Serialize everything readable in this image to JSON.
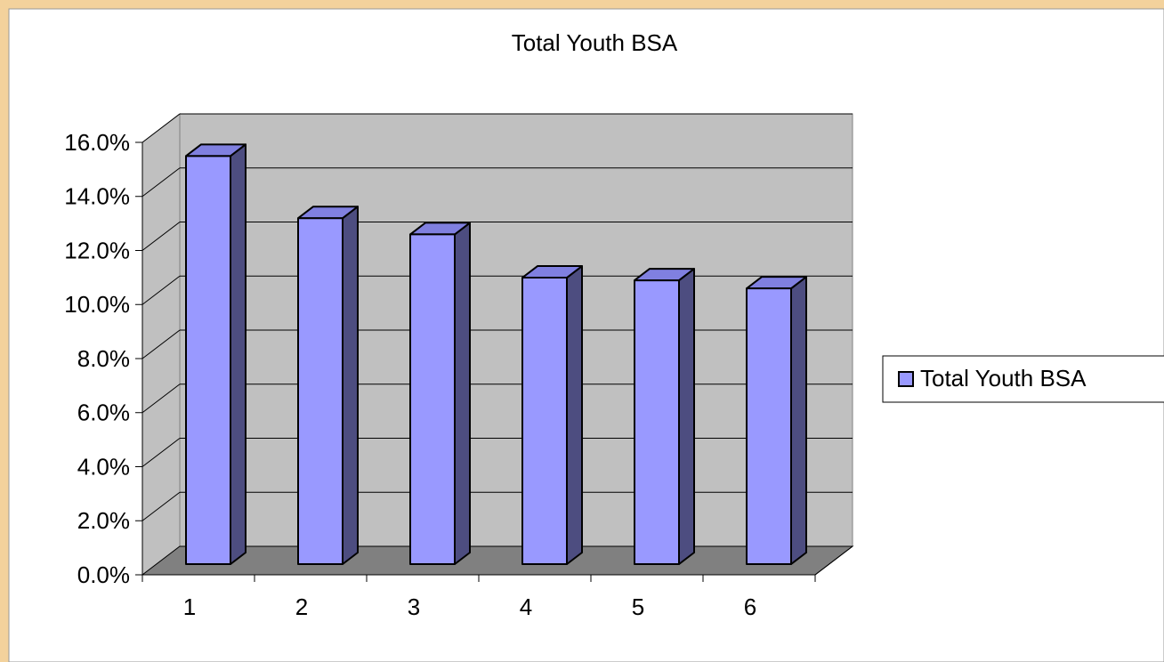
{
  "chart_data": {
    "type": "bar3d",
    "title": "Total Youth BSA",
    "categories": [
      "1",
      "2",
      "3",
      "4",
      "5",
      "6"
    ],
    "series": [
      {
        "name": "Total Youth BSA",
        "color": "#9999ff",
        "values": [
          15.1,
          12.8,
          12.2,
          10.6,
          10.5,
          10.2
        ]
      }
    ],
    "ylim": [
      0,
      16
    ],
    "yticks": [
      {
        "value": 0,
        "label": "0.0%"
      },
      {
        "value": 2,
        "label": "2.0%"
      },
      {
        "value": 4,
        "label": "4.0%"
      },
      {
        "value": 6,
        "label": "6.0%"
      },
      {
        "value": 8,
        "label": "8.0%"
      },
      {
        "value": 10,
        "label": "10.0%"
      },
      {
        "value": 12,
        "label": "12.0%"
      },
      {
        "value": 14,
        "label": "14.0%"
      },
      {
        "value": 16,
        "label": "16.0%"
      }
    ],
    "grid": true,
    "legend": "right"
  }
}
